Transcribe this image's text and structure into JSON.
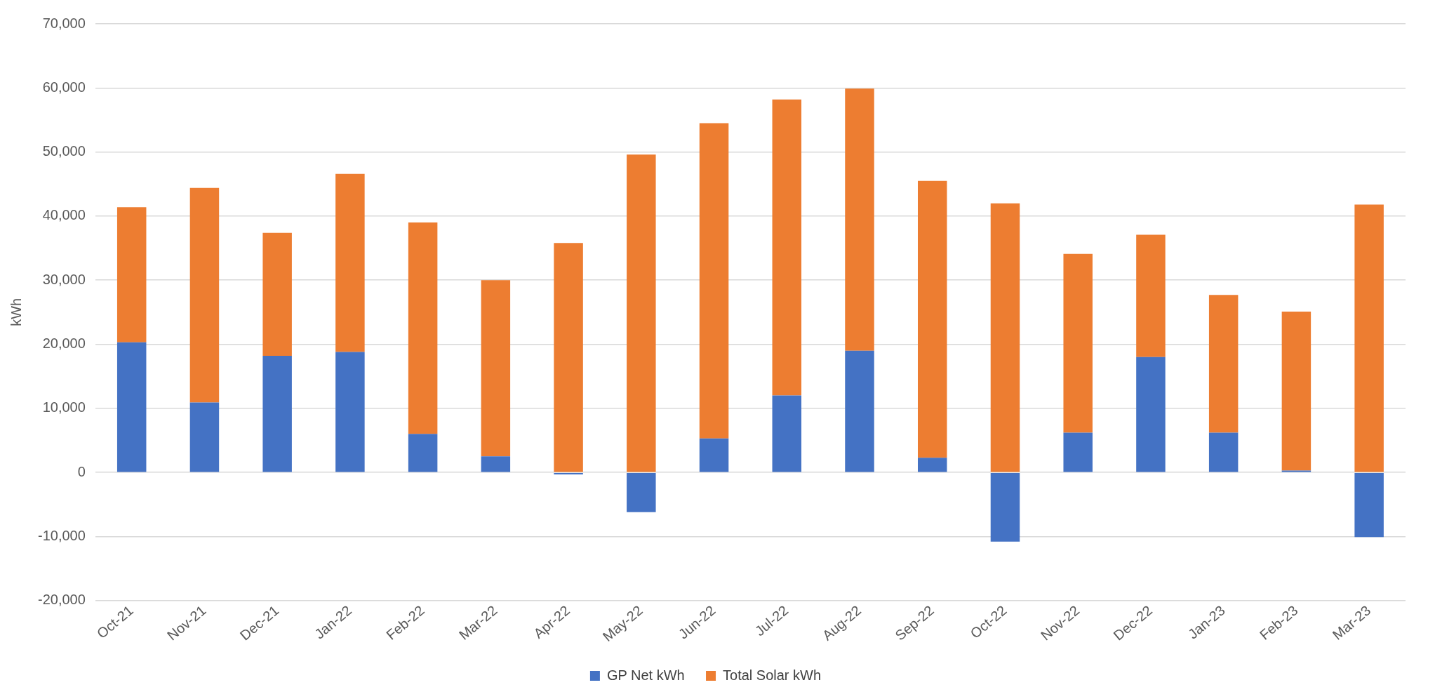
{
  "chart_data": {
    "type": "bar",
    "stacked": true,
    "ylabel": "kWh",
    "categories": [
      "Oct-21",
      "Nov-21",
      "Dec-21",
      "Jan-22",
      "Feb-22",
      "Mar-22",
      "Apr-22",
      "May-22",
      "Jun-22",
      "Jul-22",
      "Aug-22",
      "Sep-22",
      "Oct-22",
      "Nov-22",
      "Dec-22",
      "Jan-23",
      "Feb-23",
      "Mar-23"
    ],
    "series": [
      {
        "name": "GP Net kWh",
        "color": "#4472c4",
        "values": [
          20300,
          10900,
          18200,
          18800,
          6000,
          2500,
          -300,
          -6200,
          5300,
          12000,
          19000,
          2300,
          -10800,
          6200,
          18000,
          6200,
          300,
          -10100
        ]
      },
      {
        "name": "Total Solar kWh",
        "color": "#ed7d31",
        "values": [
          21100,
          33500,
          19200,
          27800,
          33000,
          27500,
          35800,
          49600,
          49200,
          46200,
          40900,
          43200,
          42000,
          27900,
          19100,
          21500,
          24800,
          41800
        ]
      }
    ],
    "ylim": [
      -20000,
      70000
    ],
    "yticks": [
      {
        "value": -20000,
        "label": "-20,000"
      },
      {
        "value": -10000,
        "label": "-10,000"
      },
      {
        "value": 0,
        "label": "0"
      },
      {
        "value": 10000,
        "label": "10,000"
      },
      {
        "value": 20000,
        "label": "20,000"
      },
      {
        "value": 30000,
        "label": "30,000"
      },
      {
        "value": 40000,
        "label": "40,000"
      },
      {
        "value": 50000,
        "label": "50,000"
      },
      {
        "value": 60000,
        "label": "60,000"
      },
      {
        "value": 70000,
        "label": "70,000"
      }
    ],
    "grid": "y",
    "legend": "bottom"
  }
}
